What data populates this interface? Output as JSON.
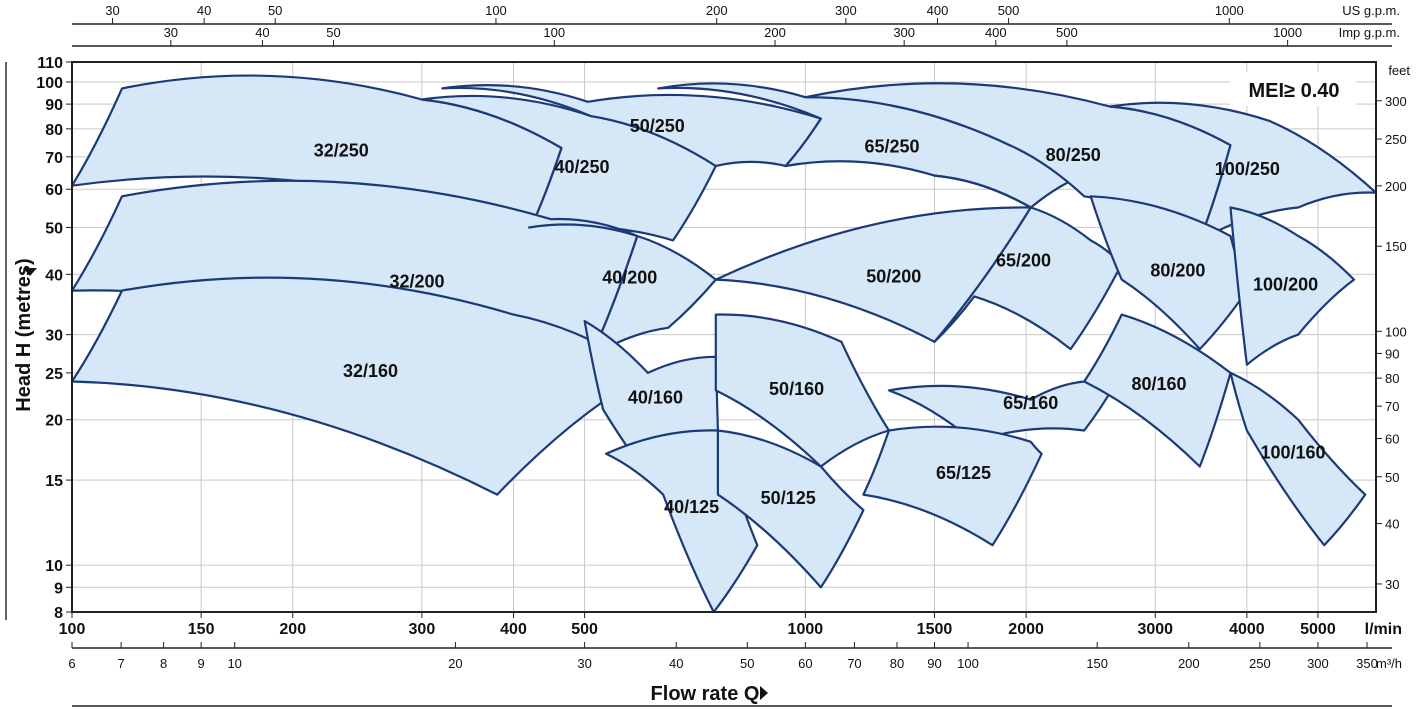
{
  "chart_data": {
    "type": "area",
    "ylabel": "Head H (metres)",
    "xlabel": "Flow rate Q",
    "badge": "MEI≥ 0.40",
    "x_unit": "l/min",
    "y_scale": "log",
    "x_scale": "log",
    "grid": true,
    "ylim": [
      8,
      110
    ],
    "xlim": [
      100,
      6000
    ],
    "y_ticks": [
      "8",
      "9",
      "10",
      "15",
      "20",
      "25",
      "30",
      "40",
      "50",
      "60",
      "70",
      "80",
      "90",
      "100",
      "110"
    ],
    "x_ticks": [
      "100",
      "150",
      "200",
      "300",
      "400",
      "500",
      "1000",
      "1500",
      "2000",
      "3000",
      "4000",
      "5000"
    ],
    "top_axes": [
      {
        "unit": "US g.p.m.",
        "ticks": [
          "30",
          "40",
          "50",
          "100",
          "200",
          "300",
          "400",
          "500",
          "1000"
        ]
      },
      {
        "unit": "Imp g.p.m.",
        "ticks": [
          "30",
          "40",
          "50",
          "100",
          "200",
          "300",
          "400",
          "500",
          "1000"
        ]
      }
    ],
    "right_axis": {
      "unit": "feet",
      "ticks": [
        "300",
        "250",
        "200",
        "150",
        "100",
        "90",
        "80",
        "70",
        "60",
        "50",
        "40",
        "30"
      ]
    },
    "m3h_axis": {
      "unit": "m³/h",
      "ticks": [
        "6",
        "7",
        "8",
        "9",
        "10",
        "20",
        "30",
        "40",
        "50",
        "60",
        "70",
        "80",
        "90",
        "100",
        "150",
        "200",
        "250",
        "300",
        "350"
      ]
    },
    "series": [
      {
        "name": "32/250",
        "points": [
          [
            100,
            61
          ],
          [
            117,
            97
          ],
          [
            300,
            92
          ],
          [
            465,
            73
          ],
          [
            420,
            49
          ],
          [
            100,
            61
          ]
        ]
      },
      {
        "name": "40/250",
        "points": [
          [
            300,
            92
          ],
          [
            510,
            85
          ],
          [
            755,
            67
          ],
          [
            660,
            47
          ],
          [
            420,
            49
          ],
          [
            465,
            73
          ],
          [
            300,
            92
          ]
        ]
      },
      {
        "name": "50/250",
        "points": [
          [
            320,
            97
          ],
          [
            505,
            91
          ],
          [
            1050,
            84
          ],
          [
            940,
            67
          ],
          [
            755,
            67
          ],
          [
            510,
            85
          ],
          [
            320,
            97
          ]
        ]
      },
      {
        "name": "65/250",
        "points": [
          [
            630,
            97
          ],
          [
            1000,
            93
          ],
          [
            1900,
            74
          ],
          [
            2450,
            65
          ],
          [
            2030,
            55
          ],
          [
            1500,
            64
          ],
          [
            940,
            67
          ],
          [
            1050,
            84
          ],
          [
            630,
            97
          ]
        ]
      },
      {
        "name": "80/250",
        "points": [
          [
            1000,
            93
          ],
          [
            2600,
            89
          ],
          [
            3800,
            74
          ],
          [
            3450,
            47
          ],
          [
            2400,
            58
          ],
          [
            1900,
            74
          ],
          [
            1000,
            93
          ]
        ]
      },
      {
        "name": "100/250",
        "points": [
          [
            2600,
            89
          ],
          [
            4300,
            83
          ],
          [
            6000,
            59
          ],
          [
            4700,
            55
          ],
          [
            3450,
            47
          ],
          [
            3800,
            74
          ],
          [
            2600,
            89
          ]
        ]
      },
      {
        "name": "32/200",
        "points": [
          [
            100,
            37
          ],
          [
            117,
            58
          ],
          [
            450,
            52
          ],
          [
            590,
            48
          ],
          [
            510,
            27
          ],
          [
            420,
            23
          ],
          [
            100,
            37
          ]
        ]
      },
      {
        "name": "40/200",
        "points": [
          [
            420,
            50
          ],
          [
            590,
            48
          ],
          [
            755,
            39
          ],
          [
            650,
            31
          ],
          [
            510,
            27
          ],
          [
            590,
            48
          ],
          [
            420,
            50
          ]
        ]
      },
      {
        "name": "50/200",
        "points": [
          [
            755,
            39
          ],
          [
            2030,
            55
          ],
          [
            1500,
            29
          ],
          [
            755,
            39
          ]
        ]
      },
      {
        "name": "65/200",
        "points": [
          [
            1500,
            64
          ],
          [
            2030,
            55
          ],
          [
            2450,
            47
          ],
          [
            2700,
            42
          ],
          [
            2300,
            28
          ],
          [
            1700,
            36
          ],
          [
            1500,
            29
          ],
          [
            2030,
            55
          ],
          [
            1500,
            64
          ]
        ]
      },
      {
        "name": "80/200",
        "points": [
          [
            2450,
            58
          ],
          [
            3800,
            48
          ],
          [
            4000,
            37
          ],
          [
            3450,
            28
          ],
          [
            2700,
            39
          ],
          [
            2450,
            58
          ]
        ]
      },
      {
        "name": "100/200",
        "points": [
          [
            3800,
            55
          ],
          [
            4700,
            48
          ],
          [
            5600,
            39
          ],
          [
            4700,
            30
          ],
          [
            4000,
            26
          ],
          [
            3800,
            55
          ]
        ]
      },
      {
        "name": "32/160",
        "points": [
          [
            100,
            24
          ],
          [
            117,
            37
          ],
          [
            400,
            33
          ],
          [
            610,
            25
          ],
          [
            380,
            14
          ],
          [
            100,
            24
          ]
        ]
      },
      {
        "name": "40/160",
        "points": [
          [
            500,
            32
          ],
          [
            610,
            25
          ],
          [
            755,
            27
          ],
          [
            760,
            19
          ],
          [
            640,
            14
          ],
          [
            530,
            21
          ],
          [
            500,
            32
          ]
        ]
      },
      {
        "name": "50/160",
        "points": [
          [
            755,
            33
          ],
          [
            1120,
            29
          ],
          [
            1300,
            19
          ],
          [
            1050,
            16
          ],
          [
            755,
            23
          ],
          [
            755,
            33
          ]
        ]
      },
      {
        "name": "65/160",
        "points": [
          [
            1300,
            23
          ],
          [
            2030,
            22
          ],
          [
            2400,
            24
          ],
          [
            2700,
            25
          ],
          [
            2400,
            19
          ],
          [
            1700,
            18
          ],
          [
            1300,
            23
          ]
        ]
      },
      {
        "name": "80/160",
        "points": [
          [
            2700,
            33
          ],
          [
            3800,
            25
          ],
          [
            3450,
            16
          ],
          [
            2400,
            24
          ],
          [
            2700,
            33
          ]
        ]
      },
      {
        "name": "100/160",
        "points": [
          [
            3800,
            25
          ],
          [
            4700,
            20
          ],
          [
            5800,
            14
          ],
          [
            5100,
            11
          ],
          [
            4000,
            19
          ],
          [
            3800,
            25
          ]
        ]
      },
      {
        "name": "40/125",
        "points": [
          [
            535,
            17
          ],
          [
            760,
            19
          ],
          [
            860,
            11
          ],
          [
            750,
            8
          ],
          [
            640,
            14
          ],
          [
            535,
            17
          ]
        ]
      },
      {
        "name": "50/125",
        "points": [
          [
            760,
            19
          ],
          [
            1050,
            16
          ],
          [
            1200,
            13
          ],
          [
            1050,
            9
          ],
          [
            760,
            14
          ],
          [
            760,
            19
          ]
        ]
      },
      {
        "name": "65/125",
        "points": [
          [
            1300,
            19
          ],
          [
            2030,
            18
          ],
          [
            2100,
            17
          ],
          [
            1800,
            11
          ],
          [
            1200,
            14
          ],
          [
            1300,
            19
          ]
        ]
      }
    ]
  }
}
